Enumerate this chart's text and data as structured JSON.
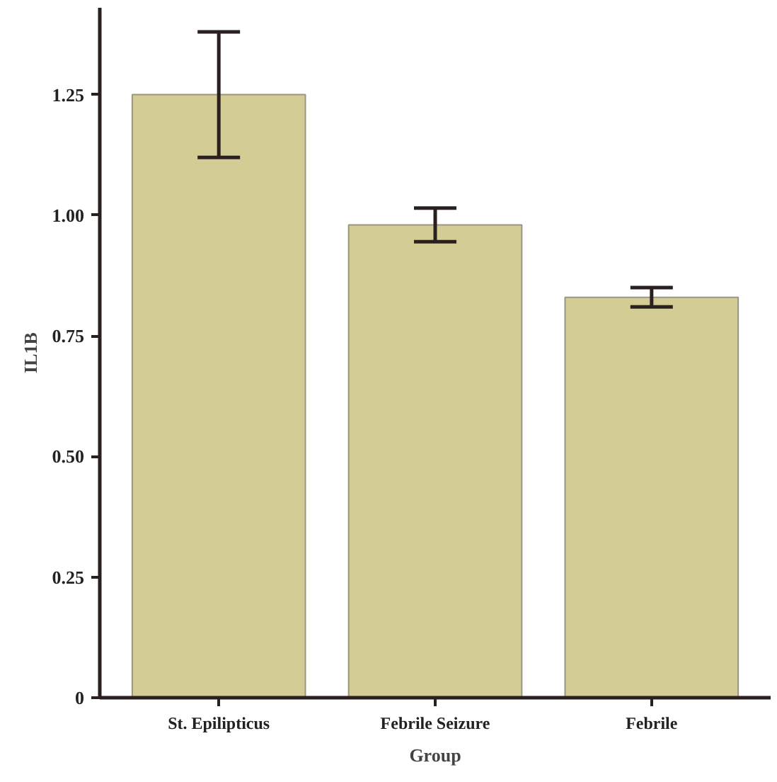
{
  "chart_data": {
    "type": "bar",
    "xlabel": "Group",
    "ylabel": "IL1B",
    "categories": [
      "St. Epilipticus",
      "Febrile Seizure",
      "Febrile"
    ],
    "values": [
      1.25,
      0.98,
      0.83
    ],
    "errors": [
      0.13,
      0.035,
      0.02
    ],
    "color": "#d3cd95",
    "ylim": [
      0,
      1.43
    ],
    "yticks": [
      0,
      {
        "value": 0.25,
        "label": "0.25"
      },
      {
        "value": 0.5,
        "label": "0.50"
      },
      {
        "value": 0.75,
        "label": "0.75"
      },
      {
        "value": 1.0,
        "label": "1.00"
      },
      {
        "value": 1.25,
        "label": "1.25"
      }
    ],
    "grid": false
  }
}
